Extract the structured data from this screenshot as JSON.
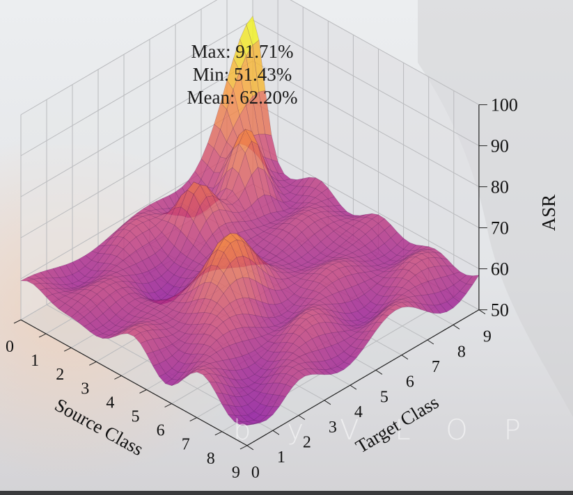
{
  "stats": {
    "max": "Max: 91.71%",
    "min": "Min: 51.43%",
    "mean": "Mean: 62.20%"
  },
  "watermark": "byVLOP",
  "chart_data": {
    "type": "surface3d",
    "title": "",
    "xlabel": "Source Class",
    "ylabel": "Target Class",
    "zlabel": "ASR",
    "x_ticks": [
      "0",
      "1",
      "2",
      "3",
      "4",
      "5",
      "6",
      "7",
      "8",
      "9"
    ],
    "y_ticks": [
      "0",
      "1",
      "2",
      "3",
      "4",
      "5",
      "6",
      "7",
      "8",
      "9"
    ],
    "z_ticks": [
      "50",
      "60",
      "70",
      "80",
      "90",
      "100"
    ],
    "xlim": [
      0,
      9
    ],
    "ylim": [
      0,
      9
    ],
    "zlim": [
      50,
      100
    ],
    "grid": true,
    "colormap": "plasma",
    "summary": {
      "max": 91.71,
      "min": 51.43,
      "mean": 62.2
    }
  }
}
